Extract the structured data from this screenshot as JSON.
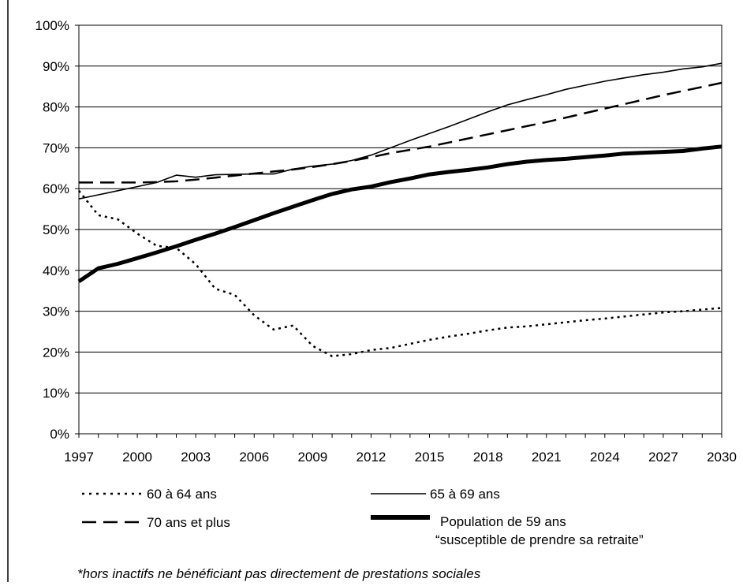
{
  "chart_data": {
    "type": "line",
    "title": "",
    "xlabel": "",
    "ylabel": "",
    "x": [
      1997,
      1998,
      1999,
      2000,
      2001,
      2002,
      2003,
      2004,
      2005,
      2006,
      2007,
      2008,
      2009,
      2010,
      2011,
      2012,
      2013,
      2014,
      2015,
      2016,
      2017,
      2018,
      2019,
      2020,
      2021,
      2022,
      2023,
      2024,
      2025,
      2026,
      2027,
      2028,
      2029,
      2030
    ],
    "x_ticks": [
      "1997",
      "2000",
      "2003",
      "2006",
      "2009",
      "2012",
      "2015",
      "2018",
      "2021",
      "2024",
      "2027",
      "2030"
    ],
    "y_ticks": [
      "0%",
      "10%",
      "20%",
      "30%",
      "40%",
      "50%",
      "60%",
      "70%",
      "80%",
      "90%",
      "100%"
    ],
    "ylim": [
      0,
      100
    ],
    "grid": "horizontal",
    "series": [
      {
        "name": "60 à 64 ans",
        "style": "dotted",
        "values": [
          59.5,
          53.5,
          52.5,
          49,
          46,
          45.5,
          41.5,
          35.5,
          34,
          29,
          25.5,
          26.5,
          21.5,
          19,
          19.5,
          20.5,
          21,
          22,
          23,
          23.8,
          24.5,
          25.3,
          26,
          26.3,
          26.8,
          27.3,
          27.8,
          28.2,
          28.7,
          29.2,
          29.7,
          30,
          30.4,
          30.8
        ]
      },
      {
        "name": "65 à 69 ans",
        "style": "thin",
        "values": [
          57.5,
          58.5,
          59.5,
          60.5,
          61.5,
          63.3,
          62.8,
          63.4,
          63.5,
          63.6,
          63.6,
          64.8,
          65.5,
          66,
          66.9,
          68.2,
          70,
          71.8,
          73.5,
          75.2,
          77,
          78.8,
          80.5,
          81.8,
          83,
          84.3,
          85.3,
          86.3,
          87.1,
          87.9,
          88.5,
          89.3,
          89.8,
          90.7
        ]
      },
      {
        "name": "70 ans et plus",
        "style": "dashed",
        "values": [
          61.5,
          61.5,
          61.5,
          61.5,
          61.6,
          61.8,
          62.2,
          62.7,
          63.2,
          63.7,
          64.2,
          64.7,
          65.3,
          66,
          66.8,
          67.7,
          68.7,
          69.5,
          70.3,
          71.3,
          72.3,
          73.3,
          74.3,
          75.3,
          76.3,
          77.4,
          78.5,
          79.6,
          80.7,
          81.8,
          82.9,
          83.9,
          84.9,
          85.9
        ]
      },
      {
        "name": "Population de 59 ans",
        "name_line2": "“susceptible de prendre sa retraite”",
        "style": "thick",
        "values": [
          37.3,
          40.5,
          41.6,
          43,
          44.4,
          45.9,
          47.5,
          49,
          50.6,
          52.3,
          54,
          55.6,
          57.2,
          58.7,
          59.8,
          60.5,
          61.6,
          62.5,
          63.5,
          64.1,
          64.6,
          65.2,
          66,
          66.6,
          67,
          67.3,
          67.7,
          68.1,
          68.6,
          68.8,
          69,
          69.2,
          69.8,
          70.3
        ]
      }
    ],
    "legend_position": "bottom"
  },
  "footnote": "*hors inactifs ne bénéficiant pas directement de prestations sociales"
}
